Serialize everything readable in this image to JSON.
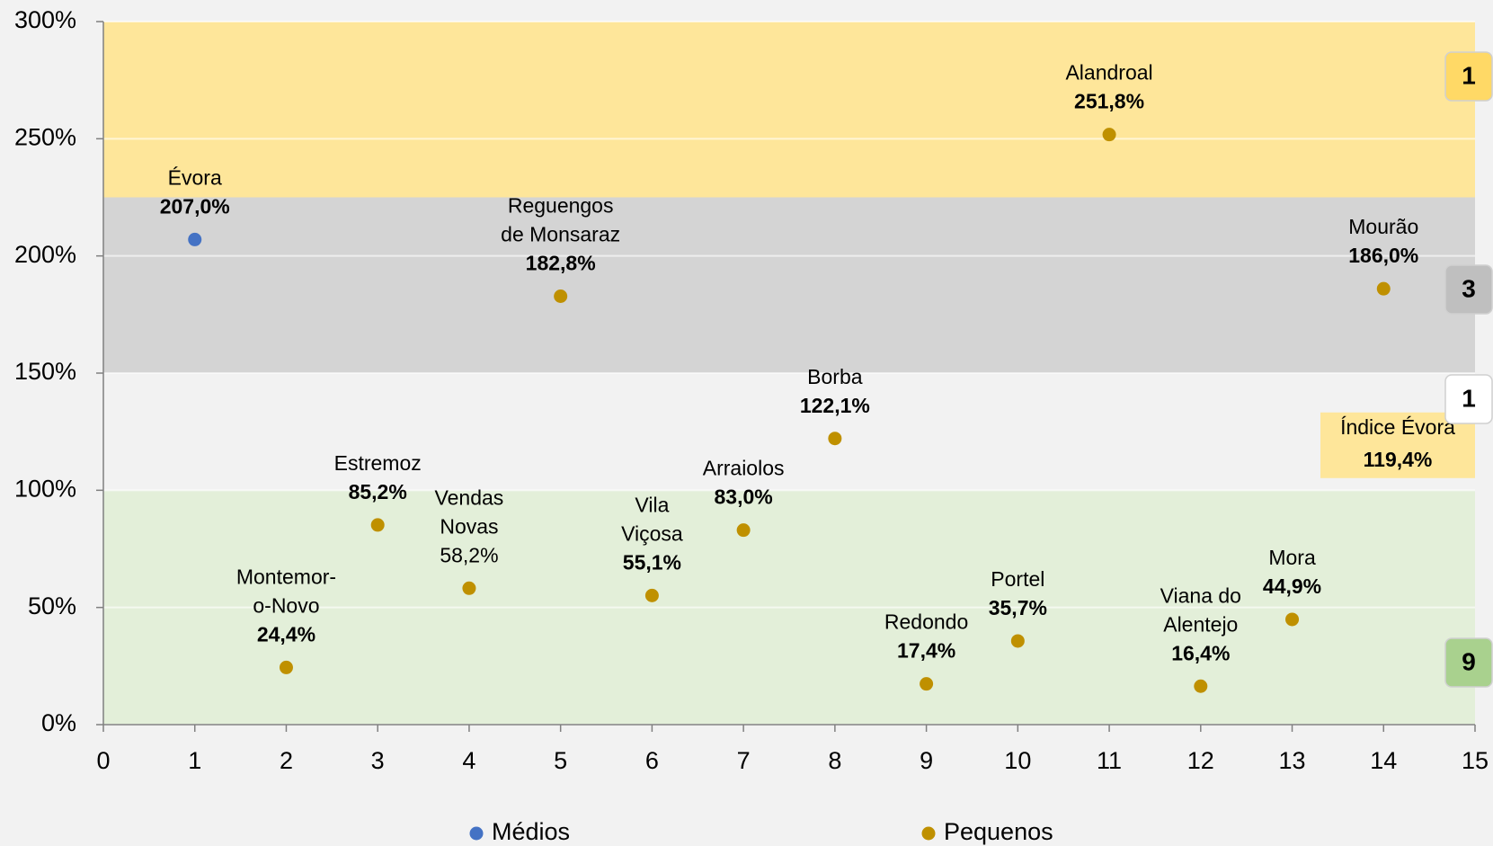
{
  "chart_data": {
    "type": "scatter",
    "xlim": [
      0,
      15
    ],
    "xticks": [
      0,
      1,
      2,
      3,
      4,
      5,
      6,
      7,
      8,
      9,
      10,
      11,
      12,
      13,
      14,
      15
    ],
    "ylim": [
      0,
      300
    ],
    "yticks": [
      {
        "value": 0,
        "label": "0%"
      },
      {
        "value": 50,
        "label": "50%"
      },
      {
        "value": 100,
        "label": "100%"
      },
      {
        "value": 150,
        "label": "150%"
      },
      {
        "value": 200,
        "label": "200%"
      },
      {
        "value": 250,
        "label": "250%"
      },
      {
        "value": 300,
        "label": "300%"
      }
    ],
    "grid": true,
    "legend": "bottom",
    "bands": [
      {
        "from": 225,
        "to": 300,
        "color": "#fee69a",
        "count": 1,
        "badge_color": "#ffd966"
      },
      {
        "from": 150,
        "to": 225,
        "color": "#d4d4d4",
        "count": 3,
        "badge_color": "#bfbfbf"
      },
      {
        "from": 100,
        "to": 150,
        "color": "#f2f2f2",
        "count": 1,
        "badge_color": "#ffffff"
      },
      {
        "from": 0,
        "to": 100,
        "color": "#e3efd9",
        "count": 9,
        "badge_color": "#a9d18e"
      }
    ],
    "annotation": {
      "text": "Índice Évora",
      "value": 119.4,
      "label": "119,4%",
      "color": "#fee69a"
    },
    "series": [
      {
        "name": "Médios",
        "color": "#4472c4",
        "x": [
          1
        ],
        "values": [
          207.0
        ],
        "value_labels": [
          "207,0%"
        ],
        "point_labels": [
          [
            "Évora"
          ]
        ],
        "value_label_bold": [
          true
        ]
      },
      {
        "name": "Pequenos",
        "color": "#bf9000",
        "x": [
          2,
          3,
          4,
          5,
          6,
          7,
          8,
          9,
          10,
          11,
          12,
          13,
          14
        ],
        "values": [
          24.4,
          85.2,
          58.2,
          182.8,
          55.1,
          83.0,
          122.1,
          17.4,
          35.7,
          251.8,
          16.4,
          44.9,
          186.0
        ],
        "value_labels": [
          "24,4%",
          "85,2%",
          "58,2%",
          "182,8%",
          "55,1%",
          "83,0%",
          "122,1%",
          "17,4%",
          "35,7%",
          "251,8%",
          "16,4%",
          "44,9%",
          "186,0%"
        ],
        "point_labels": [
          [
            "Montemor-",
            "o-Novo"
          ],
          [
            "Estremoz"
          ],
          [
            "Vendas",
            "Novas"
          ],
          [
            "Reguengos",
            "de Monsaraz"
          ],
          [
            "Vila",
            "Viçosa"
          ],
          [
            "Arraiolos"
          ],
          [
            "Borba"
          ],
          [
            "Redondo"
          ],
          [
            "Portel"
          ],
          [
            "Alandroal"
          ],
          [
            "Viana do",
            "Alentejo"
          ],
          [
            "Mora"
          ],
          [
            "Mourão"
          ]
        ],
        "value_label_bold": [
          true,
          true,
          false,
          true,
          true,
          true,
          true,
          true,
          true,
          true,
          true,
          true,
          true
        ]
      }
    ]
  }
}
